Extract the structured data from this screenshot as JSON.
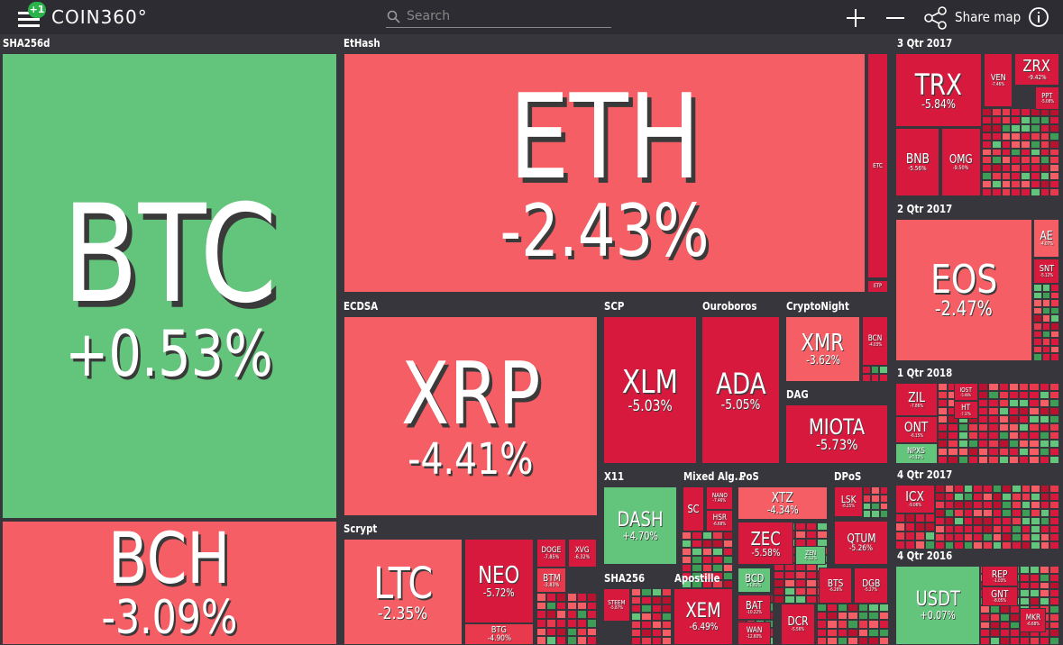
{
  "header": {
    "badge": "+1",
    "logo": "COIN360°",
    "search_placeholder": "Search",
    "share": "Share map"
  },
  "groups": [
    {
      "name": "SHA256d",
      "tiles": [
        {
          "symbol": "BTC",
          "change": "+0.53%"
        },
        {
          "symbol": "BCH",
          "change": "-3.09%"
        }
      ]
    },
    {
      "name": "EtHash",
      "tiles": [
        {
          "symbol": "ETH",
          "change": "-2.43%"
        },
        {
          "symbol": "ETC"
        },
        {
          "symbol": "ETP"
        }
      ]
    },
    {
      "name": "ECDSA",
      "tiles": [
        {
          "symbol": "XRP",
          "change": "-4.41%"
        }
      ]
    },
    {
      "name": "SCP",
      "tiles": [
        {
          "symbol": "XLM",
          "change": "-5.03%"
        }
      ]
    },
    {
      "name": "Ouroboros",
      "tiles": [
        {
          "symbol": "ADA",
          "change": "-5.05%"
        }
      ]
    },
    {
      "name": "CryptoNight",
      "tiles": [
        {
          "symbol": "XMR",
          "change": "-3.62%"
        },
        {
          "symbol": "BCN",
          "change": "-4.03%"
        }
      ]
    },
    {
      "name": "DAG",
      "tiles": [
        {
          "symbol": "MIOTA",
          "change": "-5.73%"
        }
      ]
    },
    {
      "name": "Scrypt",
      "tiles": [
        {
          "symbol": "LTC",
          "change": "-2.35%"
        },
        {
          "symbol": "NEO",
          "change": "-5.72%"
        },
        {
          "symbol": "BTG",
          "change": "-4.90%"
        },
        {
          "symbol": "DOGE",
          "change": "-7.85%"
        },
        {
          "symbol": "XVG",
          "change": "-6.32%"
        },
        {
          "symbol": "BTM",
          "change": "-3.83%"
        }
      ]
    },
    {
      "name": "X11",
      "tiles": [
        {
          "symbol": "DASH",
          "change": "+4.70%"
        }
      ]
    },
    {
      "name": "Mixed Alg...",
      "tiles": [
        {
          "symbol": "SC"
        },
        {
          "symbol": "NANO",
          "change": "-7.46%"
        },
        {
          "symbol": "HSR",
          "change": "-6.68%"
        }
      ]
    },
    {
      "name": "PoS",
      "tiles": [
        {
          "symbol": "XTZ",
          "change": "-4.34%"
        },
        {
          "symbol": "ZEC",
          "change": "-5.58%"
        },
        {
          "symbol": "BCD",
          "change": "+1.81%"
        },
        {
          "symbol": "BAT",
          "change": "-10.22%"
        },
        {
          "symbol": "WAN",
          "change": "-12.60%"
        },
        {
          "symbol": "DCR",
          "change": "-5.56%"
        },
        {
          "symbol": "ZEN",
          "change": "-6.12%"
        },
        {
          "symbol": "BTS",
          "change": "-6.26%"
        }
      ]
    },
    {
      "name": "DPoS",
      "tiles": [
        {
          "symbol": "LSK",
          "change": "-8.25%"
        },
        {
          "symbol": "QTUM",
          "change": "-5.26%"
        },
        {
          "symbol": "DGB",
          "change": "-5.27%"
        }
      ]
    },
    {
      "name": "SHA256",
      "tiles": [
        {
          "symbol": "STEEM",
          "change": "-5.87%"
        }
      ]
    },
    {
      "name": "Apostille",
      "tiles": [
        {
          "symbol": "XEM",
          "change": "-6.49%"
        }
      ]
    },
    {
      "name": "3 Qtr 2017",
      "tiles": [
        {
          "symbol": "TRX",
          "change": "-5.84%"
        },
        {
          "symbol": "VEN",
          "change": "-7.46%"
        },
        {
          "symbol": "ZRX",
          "change": "-9.42%"
        },
        {
          "symbol": "PPT",
          "change": "-5.08%"
        },
        {
          "symbol": "BNB",
          "change": "-5.56%"
        },
        {
          "symbol": "OMG",
          "change": "-9.50%"
        }
      ]
    },
    {
      "name": "2 Qtr 2017",
      "tiles": [
        {
          "symbol": "EOS",
          "change": "-2.47%"
        },
        {
          "symbol": "AE",
          "change": "-4.07%"
        },
        {
          "symbol": "SNT",
          "change": "-5.12%"
        }
      ]
    },
    {
      "name": "1 Qtr 2018",
      "tiles": [
        {
          "symbol": "ZIL",
          "change": "-7.86%"
        },
        {
          "symbol": "ONT",
          "change": "-6.15%"
        },
        {
          "symbol": "NPXS",
          "change": "+0.12%"
        },
        {
          "symbol": "IOST",
          "change": "-5.46%"
        },
        {
          "symbol": "HT",
          "change": "-7.37%"
        }
      ]
    },
    {
      "name": "4 Qtr 2017",
      "tiles": [
        {
          "symbol": "ICX",
          "change": "-9.06%"
        }
      ]
    },
    {
      "name": "4 Qtr 2016",
      "tiles": [
        {
          "symbol": "USDT",
          "change": "+0.07%"
        },
        {
          "symbol": "REP",
          "change": "-1.03%"
        },
        {
          "symbol": "GNT",
          "change": "-8.05%"
        },
        {
          "symbol": "MKR",
          "change": "-6.68%"
        }
      ]
    }
  ]
}
